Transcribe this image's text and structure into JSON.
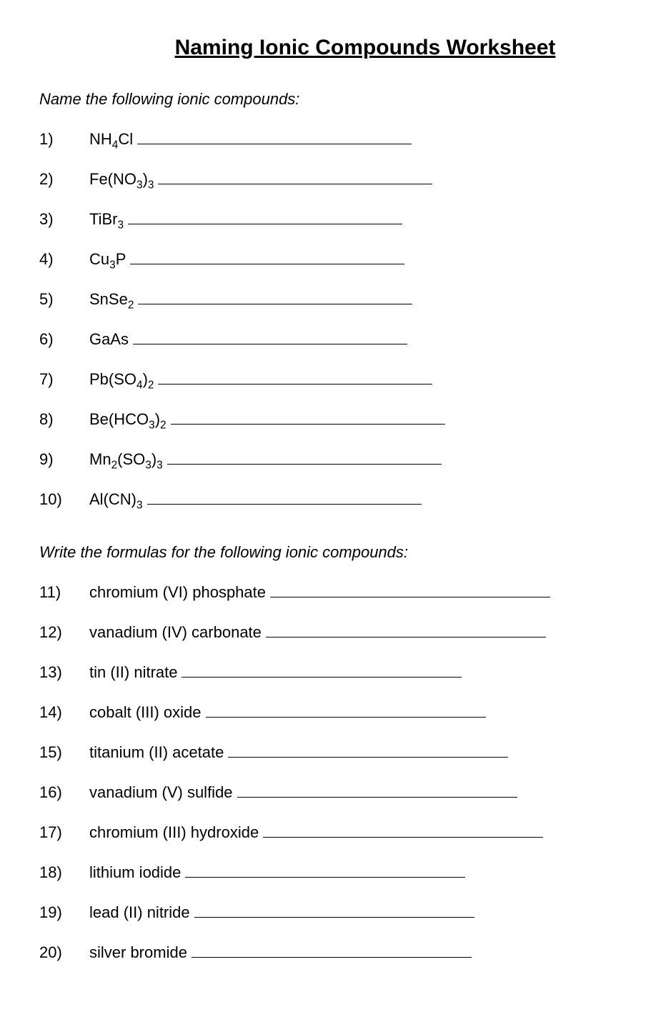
{
  "title": "Naming Ionic Compounds Worksheet",
  "section1": {
    "heading": "Name the following ionic compounds:",
    "items": [
      {
        "num": "1)",
        "formula_html": "NH<sub>4</sub>Cl",
        "blank_width": 384
      },
      {
        "num": "2)",
        "formula_html": "Fe(NO<sub>3</sub>)<sub>3</sub>",
        "blank_width": 384
      },
      {
        "num": "3)",
        "formula_html": "TiBr<sub>3</sub>",
        "blank_width": 384
      },
      {
        "num": "4)",
        "formula_html": "Cu<sub>3</sub>P",
        "blank_width": 384
      },
      {
        "num": "5)",
        "formula_html": "SnSe<sub>2</sub>",
        "blank_width": 384
      },
      {
        "num": "6)",
        "formula_html": "GaAs",
        "blank_width": 384
      },
      {
        "num": "7)",
        "formula_html": "Pb(SO<sub>4</sub>)<sub>2</sub>",
        "blank_width": 384
      },
      {
        "num": "8)",
        "formula_html": "Be(HCO<sub>3</sub>)<sub>2</sub>",
        "blank_width": 384
      },
      {
        "num": "9)",
        "formula_html": "Mn<sub>2</sub>(SO<sub>3</sub>)<sub>3</sub>",
        "blank_width": 384
      },
      {
        "num": "10)",
        "formula_html": "Al(CN)<sub>3</sub>",
        "blank_width": 384
      }
    ]
  },
  "section2": {
    "heading": "Write the formulas for the following ionic compounds:",
    "items": [
      {
        "num": "11)",
        "text": "chromium (VI) phosphate",
        "blank_width": 392
      },
      {
        "num": "12)",
        "text": "vanadium (IV) carbonate",
        "blank_width": 392
      },
      {
        "num": "13)",
        "text": "tin (II) nitrate",
        "blank_width": 392
      },
      {
        "num": "14)",
        "text": "cobalt (III) oxide",
        "blank_width": 392
      },
      {
        "num": "15)",
        "text": "titanium (II) acetate",
        "blank_width": 392
      },
      {
        "num": "16)",
        "text": "vanadium (V) sulfide",
        "blank_width": 392
      },
      {
        "num": "17)",
        "text": "chromium (III) hydroxide",
        "blank_width": 392
      },
      {
        "num": "18)",
        "text": "lithium iodide",
        "blank_width": 392
      },
      {
        "num": "19)",
        "text": "lead (II) nitride",
        "blank_width": 392
      },
      {
        "num": "20)",
        "text": "silver bromide",
        "blank_width": 392
      }
    ]
  },
  "colors": {
    "background": "#ffffff",
    "text": "#000000",
    "line": "#000000"
  },
  "typography": {
    "title_fontsize": 30,
    "body_fontsize": 22,
    "font_family": "Arial"
  }
}
